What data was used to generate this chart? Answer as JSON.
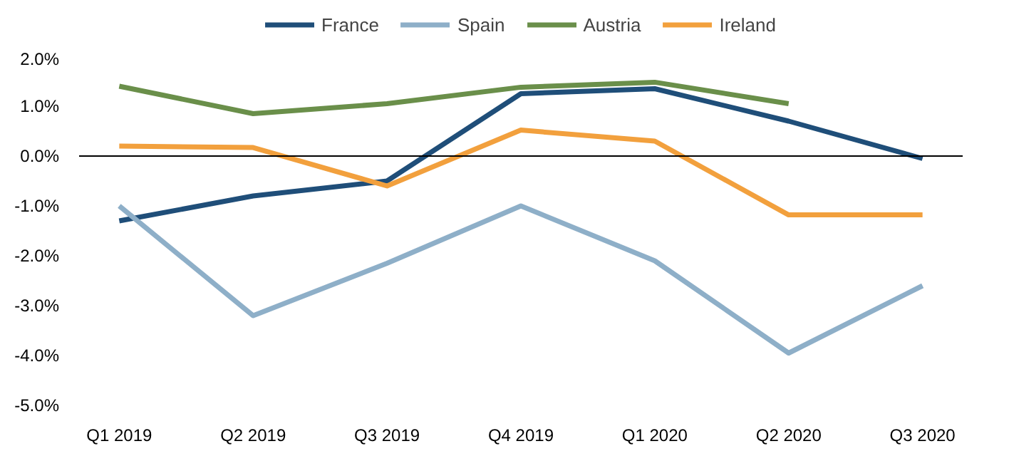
{
  "chart_data": {
    "type": "line",
    "categories": [
      "Q1 2019",
      "Q2 2019",
      "Q3 2019",
      "Q4 2019",
      "Q1 2020",
      "Q2 2020",
      "Q3 2020"
    ],
    "series": [
      {
        "name": "France",
        "color": "#1f4e79",
        "values": [
          -1.3,
          -0.8,
          -0.5,
          1.25,
          1.35,
          0.7,
          -0.05
        ]
      },
      {
        "name": "Spain",
        "color": "#8eafc8",
        "values": [
          -1.0,
          -3.2,
          -2.15,
          -1.0,
          -2.1,
          -3.95,
          -2.6
        ]
      },
      {
        "name": "Austria",
        "color": "#6a8f4a",
        "values": [
          1.4,
          0.85,
          1.05,
          1.38,
          1.48,
          1.05,
          null
        ]
      },
      {
        "name": "Ireland",
        "color": "#f2a03d",
        "values": [
          0.2,
          0.17,
          -0.6,
          0.52,
          0.3,
          -1.18,
          -1.18
        ]
      }
    ],
    "ylim": [
      -5,
      2
    ],
    "yticks": [
      {
        "value": -5,
        "label": "-5.0%"
      },
      {
        "value": -4,
        "label": "-4.0%"
      },
      {
        "value": -3,
        "label": "-3.0%"
      },
      {
        "value": -2,
        "label": "-2.0%"
      },
      {
        "value": -1,
        "label": "-1.0%"
      },
      {
        "value": 0,
        "label": "0.0%"
      },
      {
        "value": 1,
        "label": "1.0%"
      },
      {
        "value": 2,
        "label": "2.0%"
      }
    ],
    "ref_lines": [
      {
        "axis": "y",
        "value": 0,
        "color": "#000000"
      }
    ],
    "grid": false,
    "legend": "top",
    "marker": "none",
    "line_style": "solid"
  }
}
